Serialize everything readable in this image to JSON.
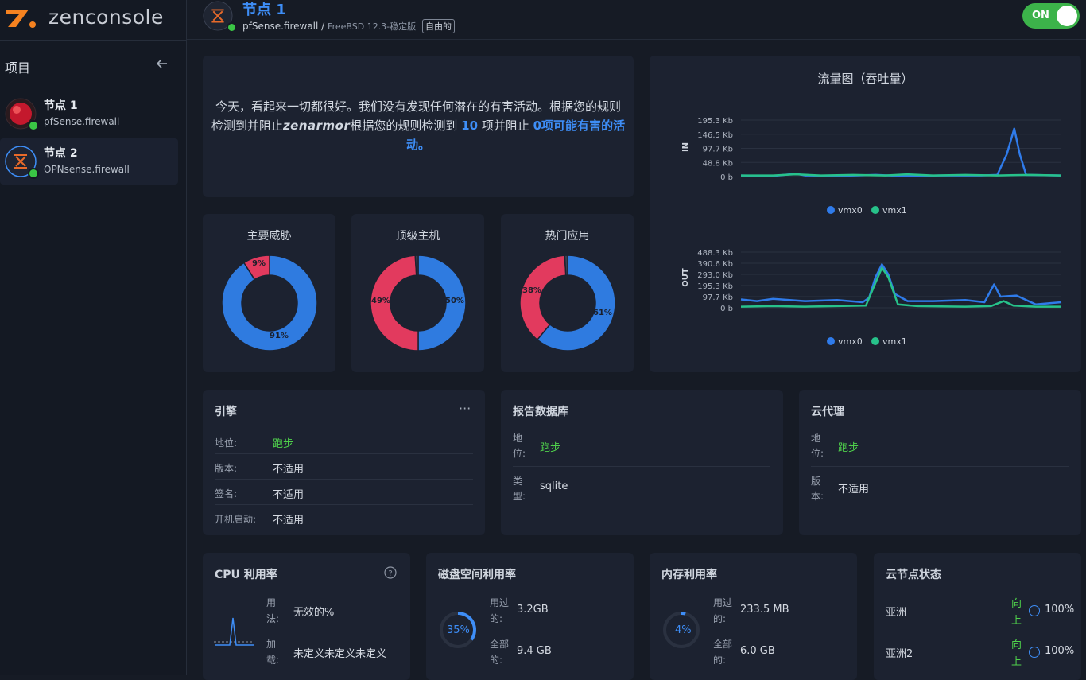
{
  "brand": {
    "name": "zenconsole"
  },
  "sidebar": {
    "title": "项目",
    "nodes": [
      {
        "name": "节点 1",
        "subtitle": "pfSense.firewall"
      },
      {
        "name": "节点 2",
        "subtitle": "OPNsense.firewall"
      }
    ]
  },
  "header": {
    "title": "节点 1",
    "subtitle_platform": "pfSense.firewall",
    "subtitle_separator": "/",
    "subtitle_os": "FreeBSD 12.3-稳定版",
    "badge": "自由的",
    "toggle_label": "ON"
  },
  "summary": {
    "part1": "今天，看起来一切都很好。我们没有发现任何潜在的有害活动。根据您的规则检测到并阻止",
    "brand": "zenarmor",
    "part2": "根据您的规则检测到",
    "detected": "10",
    "part3": "项并阻止",
    "blocked": "0项可能有害的活动。"
  },
  "traffic": {
    "title": "流量图（吞吐量）",
    "in": {
      "axis_label": "IN",
      "ticks": [
        "195.3 Kb",
        "146.5 Kb",
        "97.7 Kb",
        "48.8 Kb",
        "0 b"
      ],
      "legend": [
        "vmx0",
        "vmx1"
      ]
    },
    "out": {
      "axis_label": "OUT",
      "ticks": [
        "488.3 Kb",
        "390.6 Kb",
        "293.0 Kb",
        "195.3 Kb",
        "97.7 Kb",
        "0 b"
      ],
      "legend": [
        "vmx0",
        "vmx1"
      ]
    },
    "colors": {
      "vmx0": "#2f7bea",
      "vmx1": "#27c28a"
    }
  },
  "donuts": [
    {
      "title": "主要威胁",
      "slices": [
        {
          "label": "91%",
          "value": 91,
          "color": "#2f7be0"
        },
        {
          "label": "9%",
          "value": 9,
          "color": "#e23a5e"
        }
      ]
    },
    {
      "title": "顶级主机",
      "slices": [
        {
          "label": "50%",
          "value": 50,
          "color": "#2f7be0"
        },
        {
          "label": "49%",
          "value": 49,
          "color": "#e23a5e"
        },
        {
          "label": "",
          "value": 1,
          "color": "#3a4152"
        }
      ]
    },
    {
      "title": "热门应用",
      "slices": [
        {
          "label": "61%",
          "value": 61,
          "color": "#2f7be0"
        },
        {
          "label": "38%",
          "value": 38,
          "color": "#e23a5e"
        },
        {
          "label": "",
          "value": 1,
          "color": "#3a4152"
        }
      ]
    }
  ],
  "engine": {
    "title": "引擎",
    "rows": [
      {
        "k": "地位:",
        "v": "跑步"
      },
      {
        "k": "版本:",
        "v": "不适用"
      },
      {
        "k": "签名:",
        "v": "不适用"
      },
      {
        "k": "开机启动:",
        "v": "不适用"
      }
    ]
  },
  "report_db": {
    "title": "报告数据库",
    "rows": [
      {
        "k1": "地",
        "k2": "位:",
        "v": "跑步"
      },
      {
        "k1": "类",
        "k2": "型:",
        "v": "sqlite"
      }
    ]
  },
  "cloud_proxy": {
    "title": "云代理",
    "rows": [
      {
        "k1": "地",
        "k2": "位:",
        "v": "跑步"
      },
      {
        "k1": "版",
        "k2": "本:",
        "v": "不适用"
      }
    ]
  },
  "cpu": {
    "title": "CPU 利用率",
    "rows": [
      {
        "k1": "用",
        "k2": "法:",
        "v": "无效的%"
      },
      {
        "k1": "加",
        "k2": "载:",
        "v": "未定义未定义未定义"
      }
    ]
  },
  "disk": {
    "title": "磁盘空间利用率",
    "percent_label": "35%",
    "percent": 35,
    "rows": [
      {
        "k1": "用过",
        "k2": "的:",
        "v": "3.2GB"
      },
      {
        "k1": "全部",
        "k2": "的:",
        "v": "9.4 GB"
      }
    ]
  },
  "memory": {
    "title": "内存利用率",
    "percent_label": "4%",
    "percent": 4,
    "rows": [
      {
        "k1": "用过",
        "k2": "的:",
        "v": "233.5 MB"
      },
      {
        "k1": "全部",
        "k2": "的:",
        "v": "6.0 GB"
      }
    ]
  },
  "cloud_nodes": {
    "title": "云节点状态",
    "rows": [
      {
        "name": "亚洲",
        "status1": "向",
        "status2": "上",
        "pct": "100%"
      },
      {
        "name": "亚洲2",
        "status1": "向",
        "status2": "上",
        "pct": "100%"
      }
    ]
  }
}
